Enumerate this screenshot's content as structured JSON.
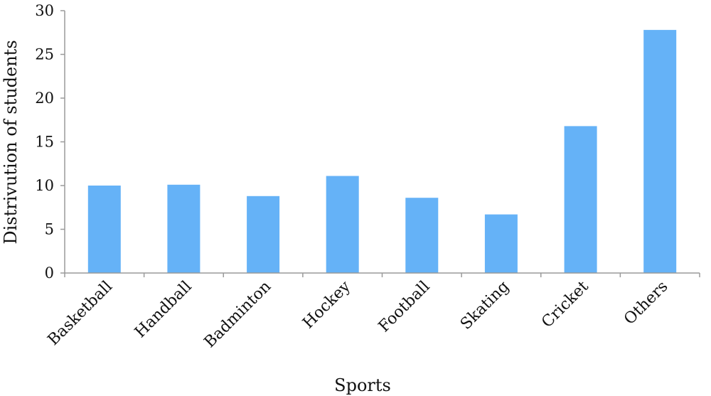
{
  "chart_data": {
    "type": "bar",
    "title": "",
    "xlabel": "Sports",
    "ylabel": "Distrivution of students",
    "categories": [
      "Basketball",
      "Handball",
      "Badminton",
      "Hockey",
      "Football",
      "Skating",
      "Cricket",
      "Others"
    ],
    "values": [
      10.0,
      10.1,
      8.8,
      11.1,
      8.6,
      6.7,
      16.8,
      27.8
    ],
    "ylim": [
      0,
      30
    ],
    "yticks": [
      0,
      5,
      10,
      15,
      20,
      25,
      30
    ],
    "grid": false,
    "legend": "none",
    "bar_color": "#65b2f7",
    "axis_color": "#9a9a9a"
  }
}
